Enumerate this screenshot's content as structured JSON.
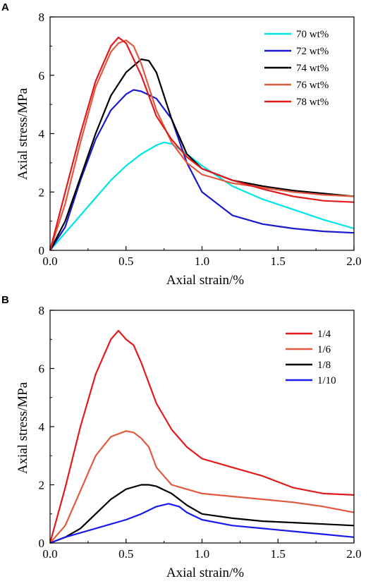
{
  "chart_data": [
    {
      "panel": "A",
      "type": "line",
      "xlabel": "Axial strain/%",
      "ylabel": "Axial stress/MPa",
      "xlim": [
        0,
        2.0
      ],
      "ylim": [
        0,
        8
      ],
      "xticks": [
        "0.0",
        "0.5",
        "1.0",
        "1.5",
        "2.0"
      ],
      "yticks": [
        "0",
        "2",
        "4",
        "6",
        "8"
      ],
      "legend_position": "top-right",
      "series": [
        {
          "name": "70 wt%",
          "color": "#00e5e5",
          "x": [
            0,
            0.1,
            0.2,
            0.3,
            0.4,
            0.5,
            0.6,
            0.7,
            0.75,
            0.8,
            0.9,
            1.0,
            1.2,
            1.4,
            1.6,
            1.8,
            2.0
          ],
          "y": [
            0,
            0.6,
            1.2,
            1.8,
            2.4,
            2.9,
            3.3,
            3.6,
            3.7,
            3.65,
            3.3,
            2.9,
            2.2,
            1.75,
            1.4,
            1.05,
            0.75
          ]
        },
        {
          "name": "72 wt%",
          "color": "#1a1acc",
          "x": [
            0,
            0.1,
            0.2,
            0.3,
            0.4,
            0.5,
            0.55,
            0.6,
            0.7,
            0.8,
            0.9,
            1.0,
            1.2,
            1.4,
            1.6,
            1.8,
            2.0
          ],
          "y": [
            0,
            0.8,
            2.4,
            3.8,
            4.8,
            5.35,
            5.5,
            5.45,
            5.2,
            4.5,
            3.0,
            2.0,
            1.2,
            0.9,
            0.75,
            0.65,
            0.6
          ]
        },
        {
          "name": "74 wt%",
          "color": "#000000",
          "x": [
            0,
            0.1,
            0.2,
            0.3,
            0.4,
            0.5,
            0.6,
            0.65,
            0.7,
            0.8,
            0.9,
            1.0,
            1.2,
            1.4,
            1.6,
            1.8,
            2.0
          ],
          "y": [
            0,
            1.0,
            2.5,
            4.0,
            5.3,
            6.1,
            6.55,
            6.5,
            6.1,
            4.5,
            3.3,
            2.8,
            2.4,
            2.2,
            2.05,
            1.95,
            1.85
          ]
        },
        {
          "name": "76 wt%",
          "color": "#e05a40",
          "x": [
            0,
            0.1,
            0.2,
            0.3,
            0.4,
            0.45,
            0.5,
            0.55,
            0.6,
            0.7,
            0.8,
            0.9,
            1.0,
            1.2,
            1.4,
            1.6,
            1.8,
            2.0
          ],
          "y": [
            0,
            1.6,
            3.7,
            5.6,
            6.8,
            7.1,
            7.2,
            7.0,
            6.4,
            4.8,
            3.7,
            3.0,
            2.6,
            2.3,
            2.15,
            2.0,
            1.9,
            1.85
          ]
        },
        {
          "name": "78 wt%",
          "color": "#e31a1c",
          "x": [
            0,
            0.1,
            0.2,
            0.3,
            0.4,
            0.45,
            0.5,
            0.6,
            0.7,
            0.8,
            0.9,
            1.0,
            1.2,
            1.4,
            1.6,
            1.8,
            2.0
          ],
          "y": [
            0,
            2.0,
            4.0,
            5.8,
            7.0,
            7.3,
            7.1,
            6.0,
            4.6,
            3.8,
            3.2,
            2.8,
            2.4,
            2.1,
            1.85,
            1.7,
            1.65
          ]
        }
      ]
    },
    {
      "panel": "B",
      "type": "line",
      "xlabel": "Axial strain/%",
      "ylabel": "Axial stress/MPa",
      "xlim": [
        0,
        2.0
      ],
      "ylim": [
        0,
        8
      ],
      "xticks": [
        "0.0",
        "0.5",
        "1.0",
        "1.5",
        "2.0"
      ],
      "yticks": [
        "0",
        "2",
        "4",
        "6",
        "8"
      ],
      "legend_position": "top-right",
      "series": [
        {
          "name": "1/4",
          "color": "#e31a1c",
          "x": [
            0,
            0.1,
            0.2,
            0.3,
            0.4,
            0.45,
            0.5,
            0.55,
            0.6,
            0.7,
            0.8,
            0.9,
            1.0,
            1.2,
            1.4,
            1.6,
            1.8,
            2.0
          ],
          "y": [
            0,
            1.9,
            4.0,
            5.8,
            7.0,
            7.3,
            7.0,
            6.8,
            6.2,
            4.8,
            3.9,
            3.3,
            2.9,
            2.6,
            2.3,
            1.9,
            1.7,
            1.65
          ]
        },
        {
          "name": "1/6",
          "color": "#e05a40",
          "x": [
            0,
            0.1,
            0.2,
            0.3,
            0.4,
            0.5,
            0.55,
            0.6,
            0.65,
            0.7,
            0.8,
            1.0,
            1.2,
            1.4,
            1.6,
            1.8,
            2.0
          ],
          "y": [
            0,
            0.6,
            1.8,
            3.0,
            3.65,
            3.85,
            3.8,
            3.6,
            3.3,
            2.6,
            2.0,
            1.7,
            1.6,
            1.5,
            1.4,
            1.25,
            1.05
          ]
        },
        {
          "name": "1/8",
          "color": "#000000",
          "x": [
            0,
            0.1,
            0.2,
            0.3,
            0.4,
            0.5,
            0.6,
            0.65,
            0.7,
            0.8,
            0.9,
            1.0,
            1.2,
            1.4,
            1.6,
            1.8,
            2.0
          ],
          "y": [
            0,
            0.2,
            0.5,
            1.0,
            1.5,
            1.85,
            2.0,
            2.0,
            1.95,
            1.7,
            1.3,
            1.0,
            0.85,
            0.75,
            0.7,
            0.65,
            0.6
          ]
        },
        {
          "name": "1/10",
          "color": "#1a1aee",
          "x": [
            0,
            0.1,
            0.2,
            0.3,
            0.4,
            0.5,
            0.6,
            0.7,
            0.78,
            0.85,
            0.9,
            1.0,
            1.2,
            1.4,
            1.6,
            1.8,
            2.0
          ],
          "y": [
            0,
            0.2,
            0.35,
            0.5,
            0.65,
            0.8,
            1.0,
            1.25,
            1.35,
            1.25,
            1.05,
            0.8,
            0.6,
            0.5,
            0.4,
            0.3,
            0.2
          ]
        }
      ]
    }
  ]
}
